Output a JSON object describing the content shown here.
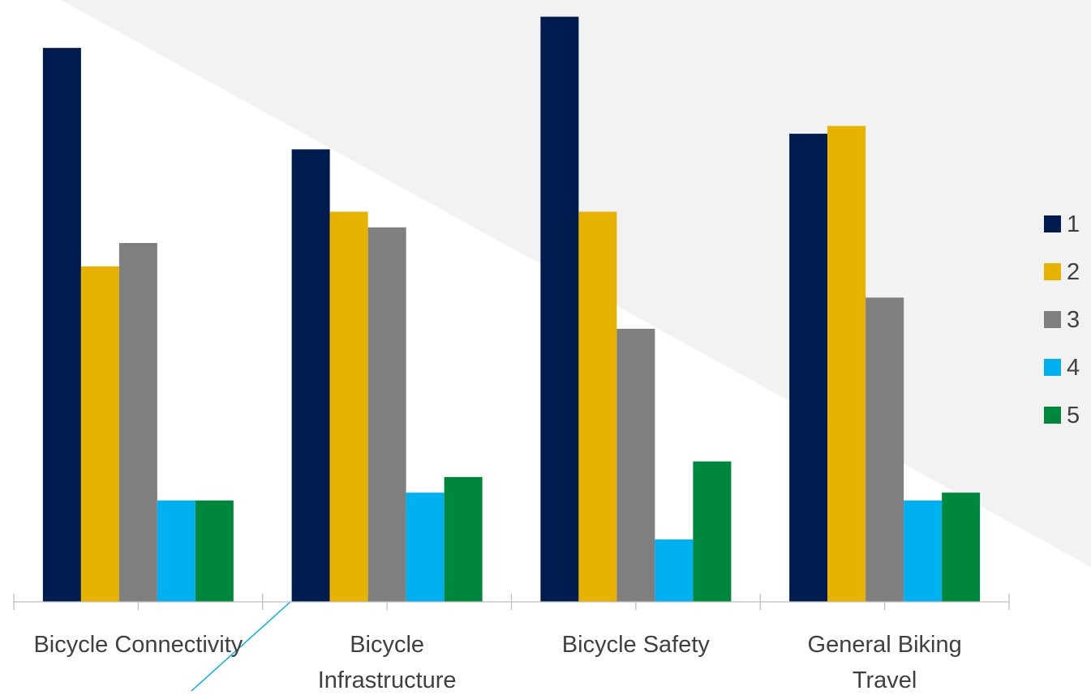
{
  "chart_data": {
    "type": "bar",
    "categories": [
      [
        "Bicycle Connectivity"
      ],
      [
        "Bicycle",
        "Infrastructure"
      ],
      [
        "Bicycle Safety"
      ],
      [
        "General Biking",
        "Travel"
      ]
    ],
    "series": [
      {
        "name": "1",
        "color": "#001B4D",
        "values": [
          71,
          58,
          75,
          60
        ]
      },
      {
        "name": "2",
        "color": "#E8B200",
        "values": [
          43,
          50,
          50,
          61
        ]
      },
      {
        "name": "3",
        "color": "#7F7F7F",
        "values": [
          46,
          48,
          35,
          39
        ]
      },
      {
        "name": "4",
        "color": "#00B0F0",
        "values": [
          13,
          14,
          8,
          13
        ]
      },
      {
        "name": "5",
        "color": "#00873E",
        "values": [
          13,
          16,
          18,
          14
        ]
      }
    ],
    "ylim": [
      0,
      76
    ],
    "grid": false,
    "legend_position": "right",
    "title": "",
    "xlabel": "",
    "ylabel": ""
  },
  "colors": {
    "background_band": "#F2F2F2",
    "axis": "#BFBFBF",
    "text": "#404040",
    "accent_line": "#00B0F0"
  }
}
